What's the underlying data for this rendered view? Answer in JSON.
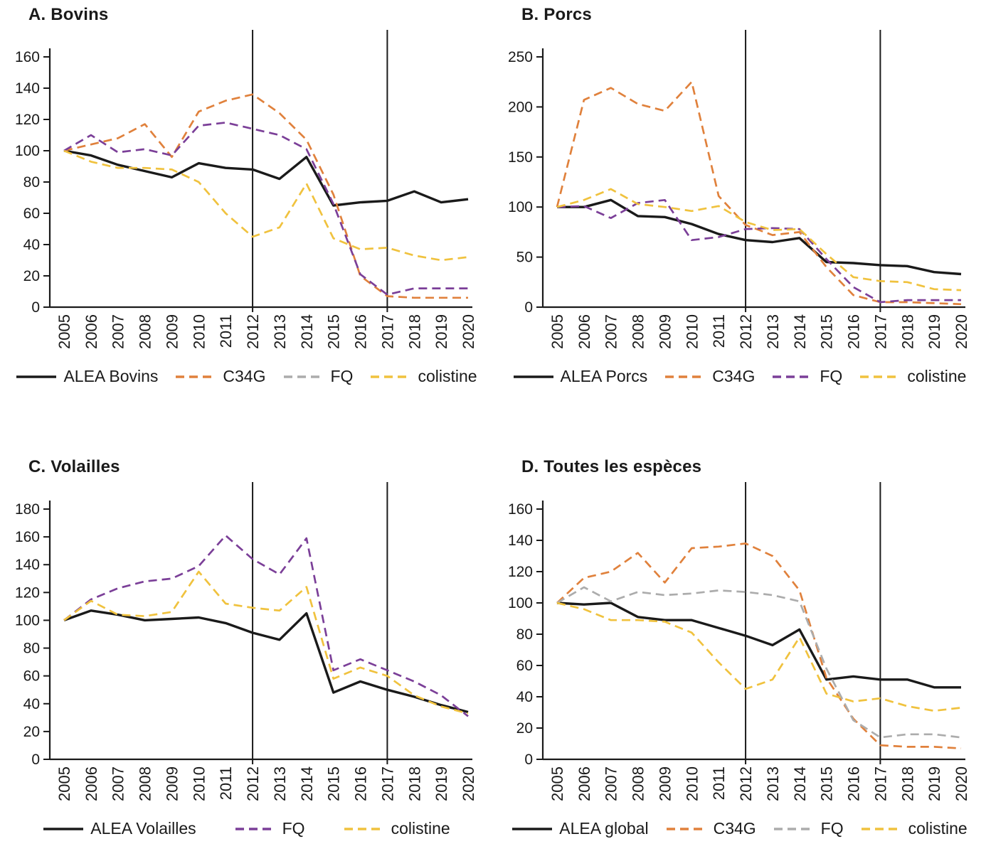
{
  "figure": {
    "background": "#ffffff",
    "text_color": "#1a1a1a",
    "vline_years": [
      2012,
      2017
    ]
  },
  "chart_data": [
    {
      "type": "line",
      "title": "A. Bovins",
      "x": [
        2005,
        2006,
        2007,
        2008,
        2009,
        2010,
        2011,
        2012,
        2013,
        2014,
        2015,
        2016,
        2017,
        2018,
        2019,
        2020
      ],
      "ylim": [
        0,
        160
      ],
      "yticks": [
        0,
        20,
        40,
        60,
        80,
        100,
        120,
        140,
        160
      ],
      "vlines": [
        2012,
        2017
      ],
      "grid": false,
      "legend_position": "bottom",
      "legend_gap": "normal",
      "series": [
        {
          "name": "ALEA Bovins",
          "color": "#1a1a1a",
          "dash": "solid",
          "values": [
            100,
            97,
            91,
            87,
            83,
            92,
            89,
            88,
            82,
            96,
            65,
            67,
            68,
            74,
            67,
            69
          ]
        },
        {
          "name": "C34G",
          "color": "#e0813c",
          "dash": "dashed",
          "values": [
            100,
            104,
            108,
            117,
            96,
            125,
            132,
            136,
            124,
            107,
            72,
            20,
            7,
            6,
            6,
            6
          ]
        },
        {
          "name": "FQ",
          "color": "#7b3f98",
          "legend_color": "#acacac",
          "dash": "dashed",
          "values": [
            100,
            110,
            99,
            101,
            97,
            116,
            118,
            114,
            110,
            101,
            66,
            21,
            8,
            12,
            12,
            12
          ]
        },
        {
          "name": "colistine",
          "color": "#f0c23e",
          "dash": "dashed",
          "values": [
            100,
            93,
            89,
            89,
            88,
            80,
            60,
            45,
            51,
            79,
            44,
            37,
            38,
            33,
            30,
            32
          ]
        }
      ]
    },
    {
      "type": "line",
      "title": "B. Porcs",
      "x": [
        2005,
        2006,
        2007,
        2008,
        2009,
        2010,
        2011,
        2012,
        2013,
        2014,
        2015,
        2016,
        2017,
        2018,
        2019,
        2020
      ],
      "ylim": [
        0,
        250
      ],
      "yticks": [
        0,
        50,
        100,
        150,
        200,
        250
      ],
      "vlines": [
        2012,
        2017
      ],
      "grid": false,
      "legend_position": "bottom",
      "legend_gap": "normal",
      "series": [
        {
          "name": "ALEA Porcs",
          "color": "#1a1a1a",
          "dash": "solid",
          "values": [
            100,
            100,
            107,
            91,
            90,
            83,
            73,
            67,
            65,
            69,
            45,
            44,
            42,
            41,
            35,
            33
          ]
        },
        {
          "name": "C34G",
          "color": "#e0813c",
          "dash": "dashed",
          "values": [
            100,
            207,
            219,
            203,
            196,
            225,
            111,
            82,
            72,
            75,
            40,
            12,
            5,
            5,
            4,
            3
          ]
        },
        {
          "name": "FQ",
          "color": "#7b3f98",
          "dash": "dashed",
          "values": [
            100,
            101,
            89,
            104,
            107,
            67,
            70,
            78,
            79,
            78,
            48,
            20,
            5,
            7,
            7,
            7
          ]
        },
        {
          "name": "colistine",
          "color": "#f0c23e",
          "dash": "dashed",
          "values": [
            100,
            107,
            118,
            103,
            100,
            96,
            101,
            85,
            77,
            78,
            53,
            30,
            26,
            25,
            18,
            17
          ]
        }
      ]
    },
    {
      "type": "line",
      "title": "C. Volailles",
      "x": [
        2005,
        2006,
        2007,
        2008,
        2009,
        2010,
        2011,
        2012,
        2013,
        2014,
        2015,
        2016,
        2017,
        2018,
        2019,
        2020
      ],
      "ylim": [
        0,
        180
      ],
      "yticks": [
        0,
        20,
        40,
        60,
        80,
        100,
        120,
        140,
        160,
        180
      ],
      "vlines": [
        2012,
        2017
      ],
      "grid": false,
      "legend_position": "bottom",
      "legend_gap": "wide",
      "series": [
        {
          "name": "ALEA Volailles",
          "color": "#1a1a1a",
          "dash": "solid",
          "values": [
            100,
            107,
            104,
            100,
            101,
            102,
            98,
            91,
            86,
            105,
            48,
            56,
            50,
            45,
            39,
            34
          ]
        },
        {
          "name": "FQ",
          "color": "#7b3f98",
          "dash": "dashed",
          "values": [
            100,
            115,
            123,
            128,
            130,
            139,
            161,
            144,
            133,
            159,
            64,
            72,
            64,
            56,
            46,
            31
          ]
        },
        {
          "name": "colistine",
          "color": "#f0c23e",
          "dash": "dashed",
          "values": [
            100,
            114,
            104,
            103,
            106,
            135,
            112,
            109,
            107,
            124,
            58,
            66,
            60,
            46,
            38,
            33
          ]
        }
      ]
    },
    {
      "type": "line",
      "title": "D. Toutes les espèces",
      "x": [
        2005,
        2006,
        2007,
        2008,
        2009,
        2010,
        2011,
        2012,
        2013,
        2014,
        2015,
        2016,
        2017,
        2018,
        2019,
        2020
      ],
      "ylim": [
        0,
        160
      ],
      "yticks": [
        0,
        20,
        40,
        60,
        80,
        100,
        120,
        140,
        160
      ],
      "vlines": [
        2012,
        2017
      ],
      "grid": false,
      "legend_position": "bottom",
      "legend_gap": "normal",
      "series": [
        {
          "name": "ALEA global",
          "color": "#1a1a1a",
          "dash": "solid",
          "values": [
            100,
            99,
            100,
            91,
            89,
            89,
            84,
            79,
            73,
            83,
            51,
            53,
            51,
            51,
            46,
            46
          ]
        },
        {
          "name": "C34G",
          "color": "#e0813c",
          "dash": "dashed",
          "values": [
            100,
            116,
            120,
            132,
            113,
            135,
            136,
            138,
            130,
            108,
            52,
            26,
            9,
            8,
            8,
            7
          ]
        },
        {
          "name": "FQ",
          "color": "#acacac",
          "dash": "dashed",
          "values": [
            100,
            110,
            101,
            107,
            105,
            106,
            108,
            107,
            105,
            101,
            58,
            25,
            14,
            16,
            16,
            14
          ]
        },
        {
          "name": "colistine",
          "color": "#f0c23e",
          "dash": "dashed",
          "values": [
            100,
            96,
            89,
            89,
            88,
            81,
            62,
            45,
            51,
            78,
            42,
            37,
            39,
            34,
            31,
            33
          ]
        }
      ]
    }
  ]
}
